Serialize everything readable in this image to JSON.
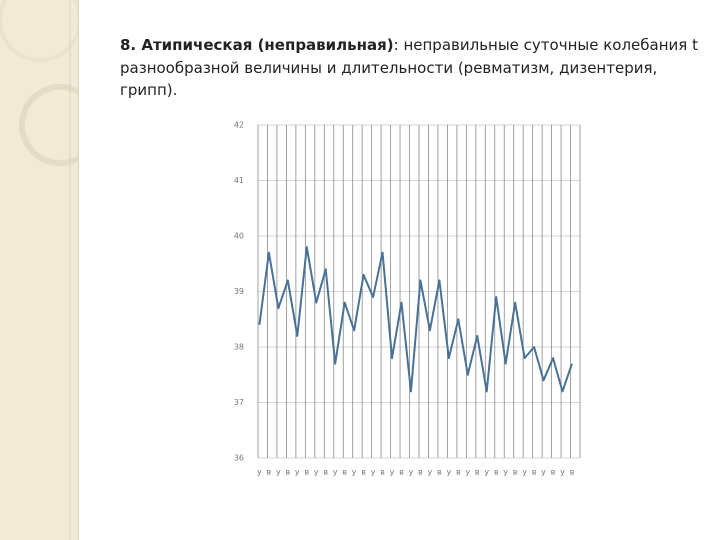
{
  "slide": {
    "heading": "8. Атипическая (неправильная)",
    "lines": [
      ": неправильные суточные колебания t",
      "разнообразной величины и длительности (ревматизм, дизентерия,",
      "грипп)."
    ]
  },
  "chart_data": {
    "type": "line",
    "categories": [
      "у",
      "в",
      "у",
      "в",
      "у",
      "в",
      "у",
      "в",
      "у",
      "в",
      "у",
      "в",
      "у",
      "в",
      "у",
      "в",
      "у",
      "в",
      "у",
      "в",
      "у",
      "в",
      "у",
      "в",
      "у",
      "в",
      "у",
      "в",
      "у",
      "в",
      "у",
      "в",
      "у",
      "в"
    ],
    "series": [
      {
        "name": "t",
        "color": "#4a7196",
        "values": [
          38.4,
          39.7,
          38.7,
          39.2,
          38.2,
          39.8,
          38.8,
          39.4,
          37.7,
          38.8,
          38.3,
          39.3,
          38.9,
          39.7,
          37.8,
          38.8,
          37.2,
          39.2,
          38.3,
          39.2,
          37.8,
          38.5,
          37.5,
          38.2,
          37.2,
          38.9,
          37.7,
          38.8,
          37.8,
          38.0,
          37.4,
          37.8,
          37.2,
          37.7
        ]
      }
    ],
    "ylim": [
      36,
      42
    ],
    "yticks": [
      36,
      37,
      38,
      39,
      40,
      41,
      42
    ],
    "grid": true
  }
}
